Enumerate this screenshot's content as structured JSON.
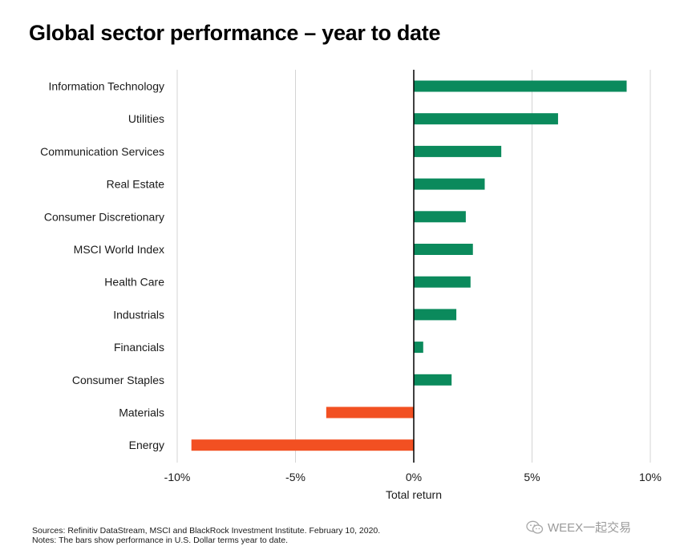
{
  "title": "Global sector performance – year to date",
  "chart_data": {
    "type": "bar",
    "orientation": "horizontal",
    "categories": [
      "Information Technology",
      "Utilities",
      "Communication Services",
      "Real Estate",
      "Consumer Discretionary",
      "MSCI World Index",
      "Health Care",
      "Industrials",
      "Financials",
      "Consumer Staples",
      "Materials",
      "Energy"
    ],
    "values": [
      9.0,
      6.1,
      3.7,
      3.0,
      2.2,
      2.5,
      2.4,
      1.8,
      0.4,
      1.6,
      -3.7,
      -9.4
    ],
    "xlabel": "Total return",
    "ylabel": "",
    "xlim": [
      -10,
      10
    ],
    "ticks": [
      -10,
      -5,
      0,
      5,
      10
    ],
    "tick_labels": [
      "-10%",
      "-5%",
      "0%",
      "5%",
      "10%"
    ],
    "grid": true,
    "positive_color": "#0b8a5c",
    "negative_color": "#f25022"
  },
  "footnotes": {
    "sources": "Sources: Refinitiv DataStream, MSCI and BlackRock Investment Institute. February 10, 2020.",
    "notes": "Notes: The bars show performance in U.S. Dollar terms year to date."
  },
  "watermark": {
    "icon": "wechat-icon",
    "text": "WEEX一起交易"
  }
}
